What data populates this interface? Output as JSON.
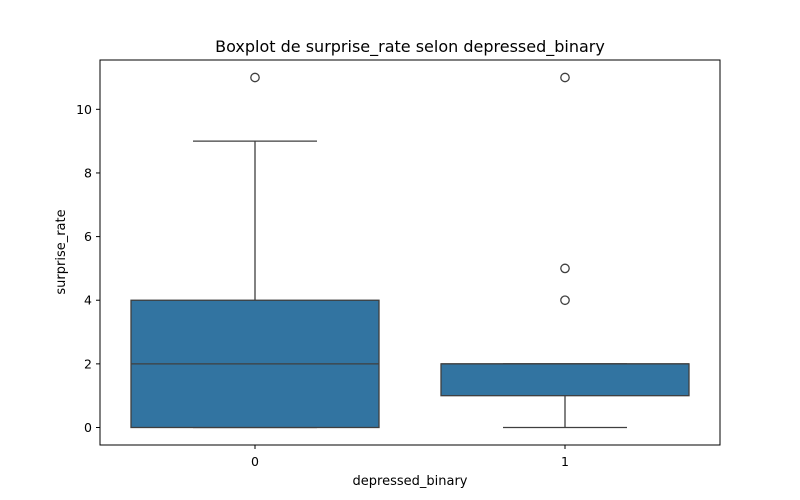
{
  "chart_data": {
    "type": "boxplot",
    "title": "Boxplot de surprise_rate selon depressed_binary",
    "xlabel": "depressed_binary",
    "ylabel": "surprise_rate",
    "categories": [
      "0",
      "1"
    ],
    "ylim": [
      -0.55,
      11.55
    ],
    "yticks": [
      0,
      2,
      4,
      6,
      8,
      10
    ],
    "grid": false,
    "box_color": "#3274a1",
    "line_color": "#3f3f3f",
    "boxes": [
      {
        "category": "0",
        "whisker_low": 0,
        "q1": 0,
        "median": 2,
        "q3": 4,
        "whisker_high": 9,
        "outliers": [
          11
        ]
      },
      {
        "category": "1",
        "whisker_low": 0,
        "q1": 1,
        "median": 2,
        "q3": 2,
        "whisker_high": 2,
        "outliers": [
          4,
          5,
          11
        ]
      }
    ]
  }
}
